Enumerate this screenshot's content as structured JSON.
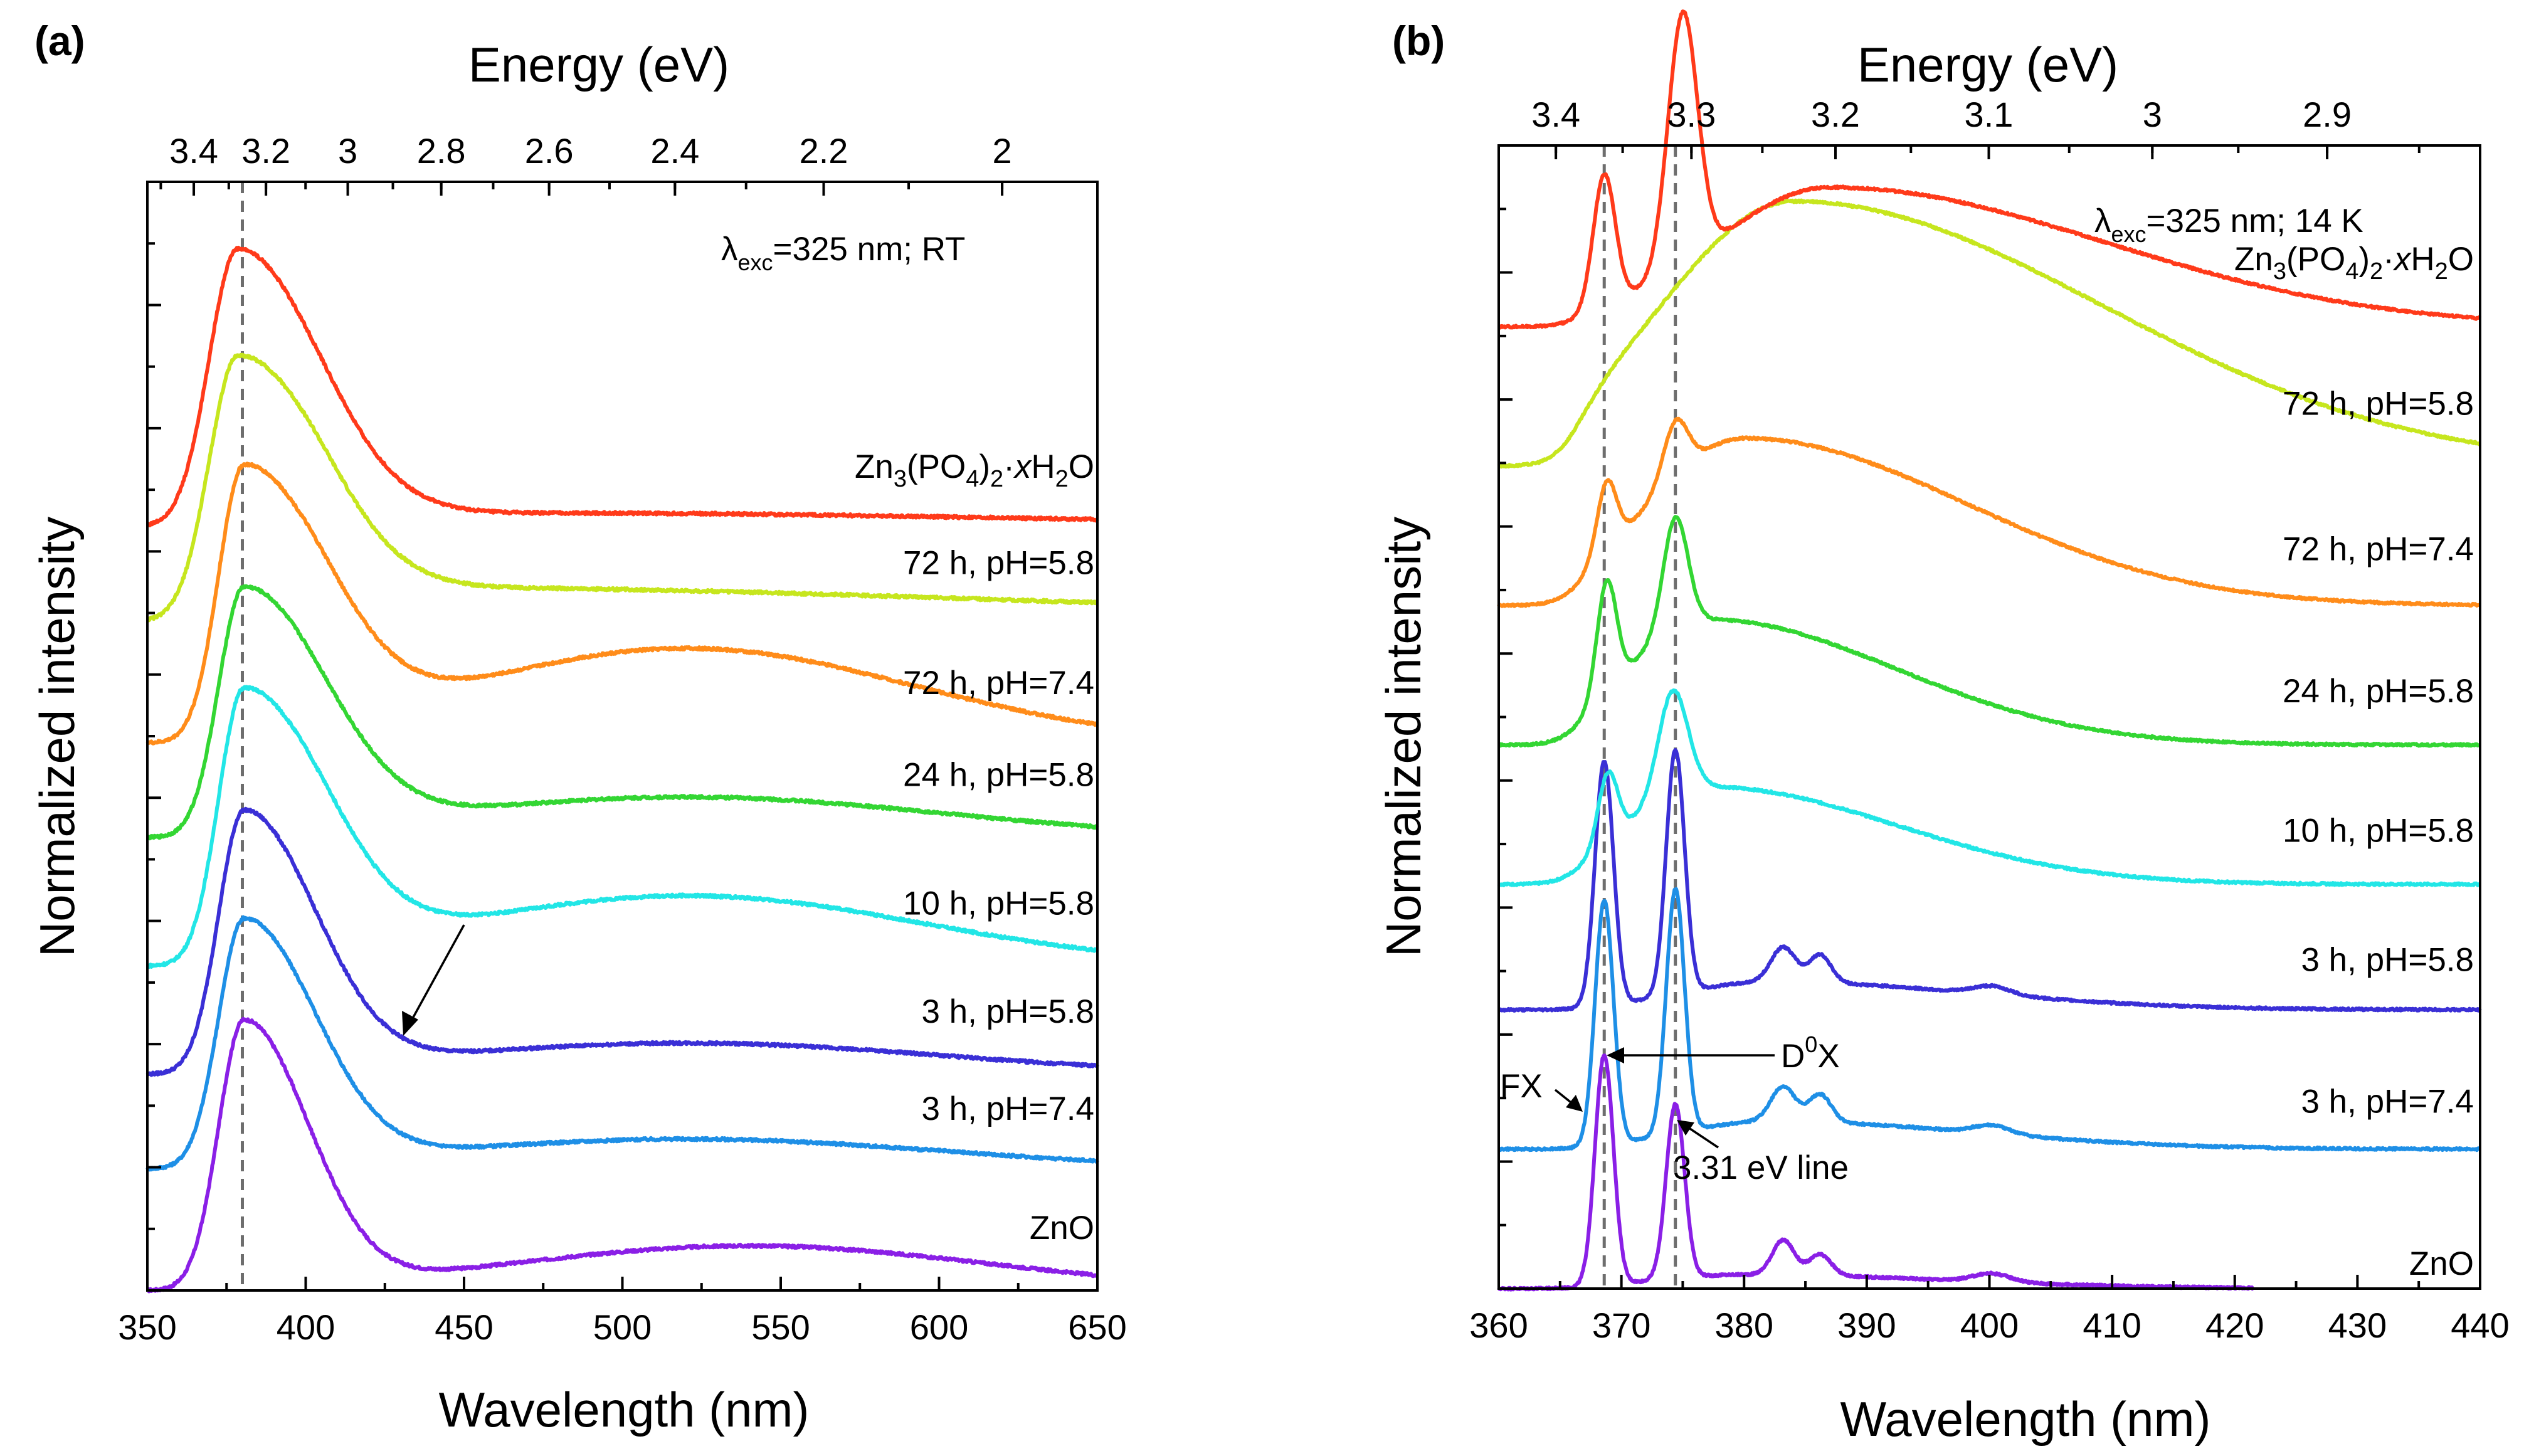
{
  "figure": {
    "panels": [
      {
        "id": "a",
        "label": "(a)",
        "top_axis_title": "Energy (eV)",
        "bottom_axis_title": "Wavelength (nm)",
        "y_axis_title": "Normalized intensity",
        "condition": {
          "lambda": "λ",
          "sub": "exc",
          "rest": "=325 nm; RT"
        },
        "xlim": [
          350,
          650
        ],
        "x_ticks": [
          350,
          400,
          450,
          500,
          550,
          600,
          650
        ],
        "x_tick_labels": [
          "350",
          "400",
          "450",
          "500",
          "550",
          "600",
          "650"
        ],
        "energy_tick_labels": [
          "3.4",
          "3.2",
          "3",
          "2.8",
          "2.6",
          "2.4",
          "2.2",
          "2"
        ],
        "energy_tick_values": [
          3.4,
          3.2,
          3.0,
          2.8,
          2.6,
          2.4,
          2.2,
          2.0
        ],
        "reference_lines_nm": [
          380
        ],
        "annotations": []
      },
      {
        "id": "b",
        "label": "(b)",
        "top_axis_title": "Energy (eV)",
        "bottom_axis_title": "Wavelength (nm)",
        "y_axis_title": "Normalized intensity",
        "condition": {
          "lambda": "λ",
          "sub": "exc",
          "rest": "=325 nm; 14 K"
        },
        "xlim": [
          360,
          440
        ],
        "x_ticks": [
          360,
          370,
          380,
          390,
          400,
          410,
          420,
          430,
          440
        ],
        "x_tick_labels": [
          "360",
          "370",
          "380",
          "390",
          "400",
          "410",
          "420",
          "430",
          "440"
        ],
        "energy_tick_labels": [
          "3.4",
          "3.3",
          "3.2",
          "3.1",
          "3",
          "2.9"
        ],
        "energy_tick_values": [
          3.4,
          3.3,
          3.2,
          3.1,
          3.0,
          2.9
        ],
        "reference_lines_nm": [
          368.6,
          374.4
        ],
        "annotations": [
          {
            "id": "d0x",
            "main": "D",
            "sup": "0",
            "tail": "X"
          },
          {
            "id": "fx",
            "main": "FX",
            "sup": "",
            "tail": ""
          },
          {
            "id": "line331",
            "main": "3.31 eV line",
            "sup": "",
            "tail": ""
          }
        ]
      }
    ]
  },
  "chart_data": [
    {
      "type": "line",
      "panel": "a",
      "title": "λexc=325 nm; RT",
      "xlabel": "Wavelength (nm)",
      "ylabel": "Normalized intensity",
      "x2label": "Energy (eV)",
      "xlim": [
        350,
        650
      ],
      "ylim": [
        0,
        8.2
      ],
      "series": [
        {
          "name": "ZnO",
          "color": "#8a1fe6",
          "offset": 0.0,
          "peak_nm": 380.5,
          "peak_height": 2.0,
          "peak_width": 8,
          "peak_tail": 20,
          "band_nm": 540,
          "band_height": 0.33,
          "band_width": 75,
          "end_value": 0.2,
          "end_nm": 650
        },
        {
          "name": "3 h, pH=7.4",
          "color": "#1e8fe6",
          "offset": 0.9,
          "peak_nm": 380.5,
          "peak_height": 1.85,
          "peak_width": 8,
          "peak_tail": 22,
          "band_nm": 520,
          "band_height": 0.22,
          "band_width": 80,
          "end_value": 0.0,
          "end_nm": 650
        },
        {
          "name": "3 h, pH=5.8",
          "color": "#3a2fd6",
          "offset": 1.6,
          "peak_nm": 380.5,
          "peak_height": 1.95,
          "peak_width": 8,
          "peak_tail": 22,
          "band_nm": 520,
          "band_height": 0.23,
          "band_width": 80,
          "end_value": 0.0,
          "end_nm": 650
        },
        {
          "name": "10 h, pH=5.8",
          "color": "#22e6e6",
          "offset": 2.4,
          "peak_nm": 380.5,
          "peak_height": 2.05,
          "peak_width": 8,
          "peak_tail": 25,
          "band_nm": 520,
          "band_height": 0.52,
          "band_width": 75,
          "end_value": 0.0,
          "end_nm": 650
        },
        {
          "name": "24 h, pH=5.8",
          "color": "#33d633",
          "offset": 3.35,
          "peak_nm": 380.5,
          "peak_height": 1.85,
          "peak_width": 8,
          "peak_tail": 25,
          "band_nm": 520,
          "band_height": 0.3,
          "band_width": 80,
          "end_value": 0.0,
          "end_nm": 650
        },
        {
          "name": "72 h, pH=7.4",
          "color": "#ff8c1a",
          "offset": 4.05,
          "peak_nm": 380.5,
          "peak_height": 2.05,
          "peak_width": 8,
          "peak_tail": 25,
          "band_nm": 520,
          "band_height": 0.7,
          "band_width": 72,
          "end_value": 0.0,
          "end_nm": 650
        },
        {
          "name": "72 h, pH=5.8",
          "color": "#c6e61e",
          "offset": 4.95,
          "peak_nm": 378.5,
          "peak_height": 1.95,
          "peak_width": 9,
          "peak_tail": 25,
          "band_nm": 430,
          "band_height": 0.25,
          "band_width": 200,
          "end_value": 0.0,
          "end_nm": 650
        },
        {
          "name": "Zn3(PO4)2·xH2O",
          "color": "#ff3a1a",
          "offset": 5.65,
          "peak_nm": 378.5,
          "peak_height": 2.05,
          "peak_width": 9,
          "peak_tail": 25,
          "band_nm": 480,
          "band_height": 0.1,
          "band_width": 150,
          "end_value": 0.0,
          "end_nm": 650
        }
      ]
    },
    {
      "type": "line",
      "panel": "b",
      "title": "λexc=325 nm; 14 K",
      "xlabel": "Wavelength (nm)",
      "ylabel": "Normalized intensity",
      "x2label": "Energy (eV)",
      "xlim": [
        360,
        440
      ],
      "ylim": [
        0,
        8.2
      ],
      "series": [
        {
          "name": "ZnO",
          "color": "#8a1fe6",
          "offset": 0.0,
          "end_nm": 421.5,
          "peaks": [
            [
              368.6,
              1.65,
              0.75
            ],
            [
              374.4,
              1.25,
              0.75
            ],
            [
              383.2,
              0.25,
              0.9
            ],
            [
              386.2,
              0.15,
              0.9
            ],
            [
              400.2,
              0.06,
              1.5
            ]
          ],
          "background": [
            [
              380,
              0.1,
              12
            ]
          ]
        },
        {
          "name": "3 h, pH=7.4",
          "color": "#1e8fe6",
          "offset": 1.0,
          "end_nm": 440,
          "peaks": [
            [
              368.6,
              1.75,
              0.75
            ],
            [
              374.4,
              1.75,
              0.75
            ],
            [
              383.2,
              0.25,
              1.0
            ],
            [
              386.2,
              0.2,
              0.9
            ],
            [
              400.2,
              0.06,
              1.5
            ]
          ],
          "background": [
            [
              382,
              0.2,
              12
            ]
          ]
        },
        {
          "name": "3 h, pH=5.8",
          "color": "#3a2fd6",
          "offset": 2.0,
          "end_nm": 440,
          "peaks": [
            [
              368.6,
              1.75,
              0.75
            ],
            [
              374.4,
              1.75,
              0.75
            ],
            [
              383.2,
              0.25,
              1.0
            ],
            [
              386.2,
              0.2,
              0.9
            ],
            [
              400.2,
              0.06,
              1.5
            ]
          ],
          "background": [
            [
              382,
              0.2,
              12
            ]
          ]
        },
        {
          "name": "10 h, pH=5.8",
          "color": "#22e6e6",
          "offset": 2.9,
          "end_nm": 440,
          "peaks": [
            [
              368.9,
              0.5,
              0.8
            ],
            [
              374.2,
              0.75,
              1.2
            ]
          ],
          "background": [
            [
              377,
              0.7,
              11
            ]
          ]
        },
        {
          "name": "24 h, pH=5.8",
          "color": "#33d633",
          "offset": 3.9,
          "end_nm": 440,
          "peaks": [
            [
              368.8,
              0.8,
              0.8
            ],
            [
              374.4,
              0.8,
              1.0
            ]
          ],
          "background": [
            [
              377,
              0.9,
              11
            ]
          ]
        },
        {
          "name": "72 h, pH=7.4",
          "color": "#ff8c1a",
          "offset": 4.9,
          "end_nm": 440,
          "peaks": [
            [
              368.8,
              0.5,
              0.8
            ],
            [
              374.4,
              0.4,
              1.0
            ]
          ],
          "background": [
            [
              380,
              1.2,
              13
            ]
          ]
        },
        {
          "name": "72 h, pH=5.8",
          "color": "#c6e61e",
          "offset": 5.9,
          "end_nm": 440,
          "peaks": [],
          "background": [
            [
              384,
              1.9,
              18
            ]
          ]
        },
        {
          "name": "Zn3(PO4)2·xH2O",
          "color": "#ff3a1a",
          "offset": 6.9,
          "end_nm": 440,
          "peaks": [
            [
              368.6,
              0.95,
              0.9
            ],
            [
              375.0,
              1.8,
              1.2
            ]
          ],
          "background": [
            [
              387,
              1.0,
              16
            ]
          ]
        }
      ]
    }
  ]
}
